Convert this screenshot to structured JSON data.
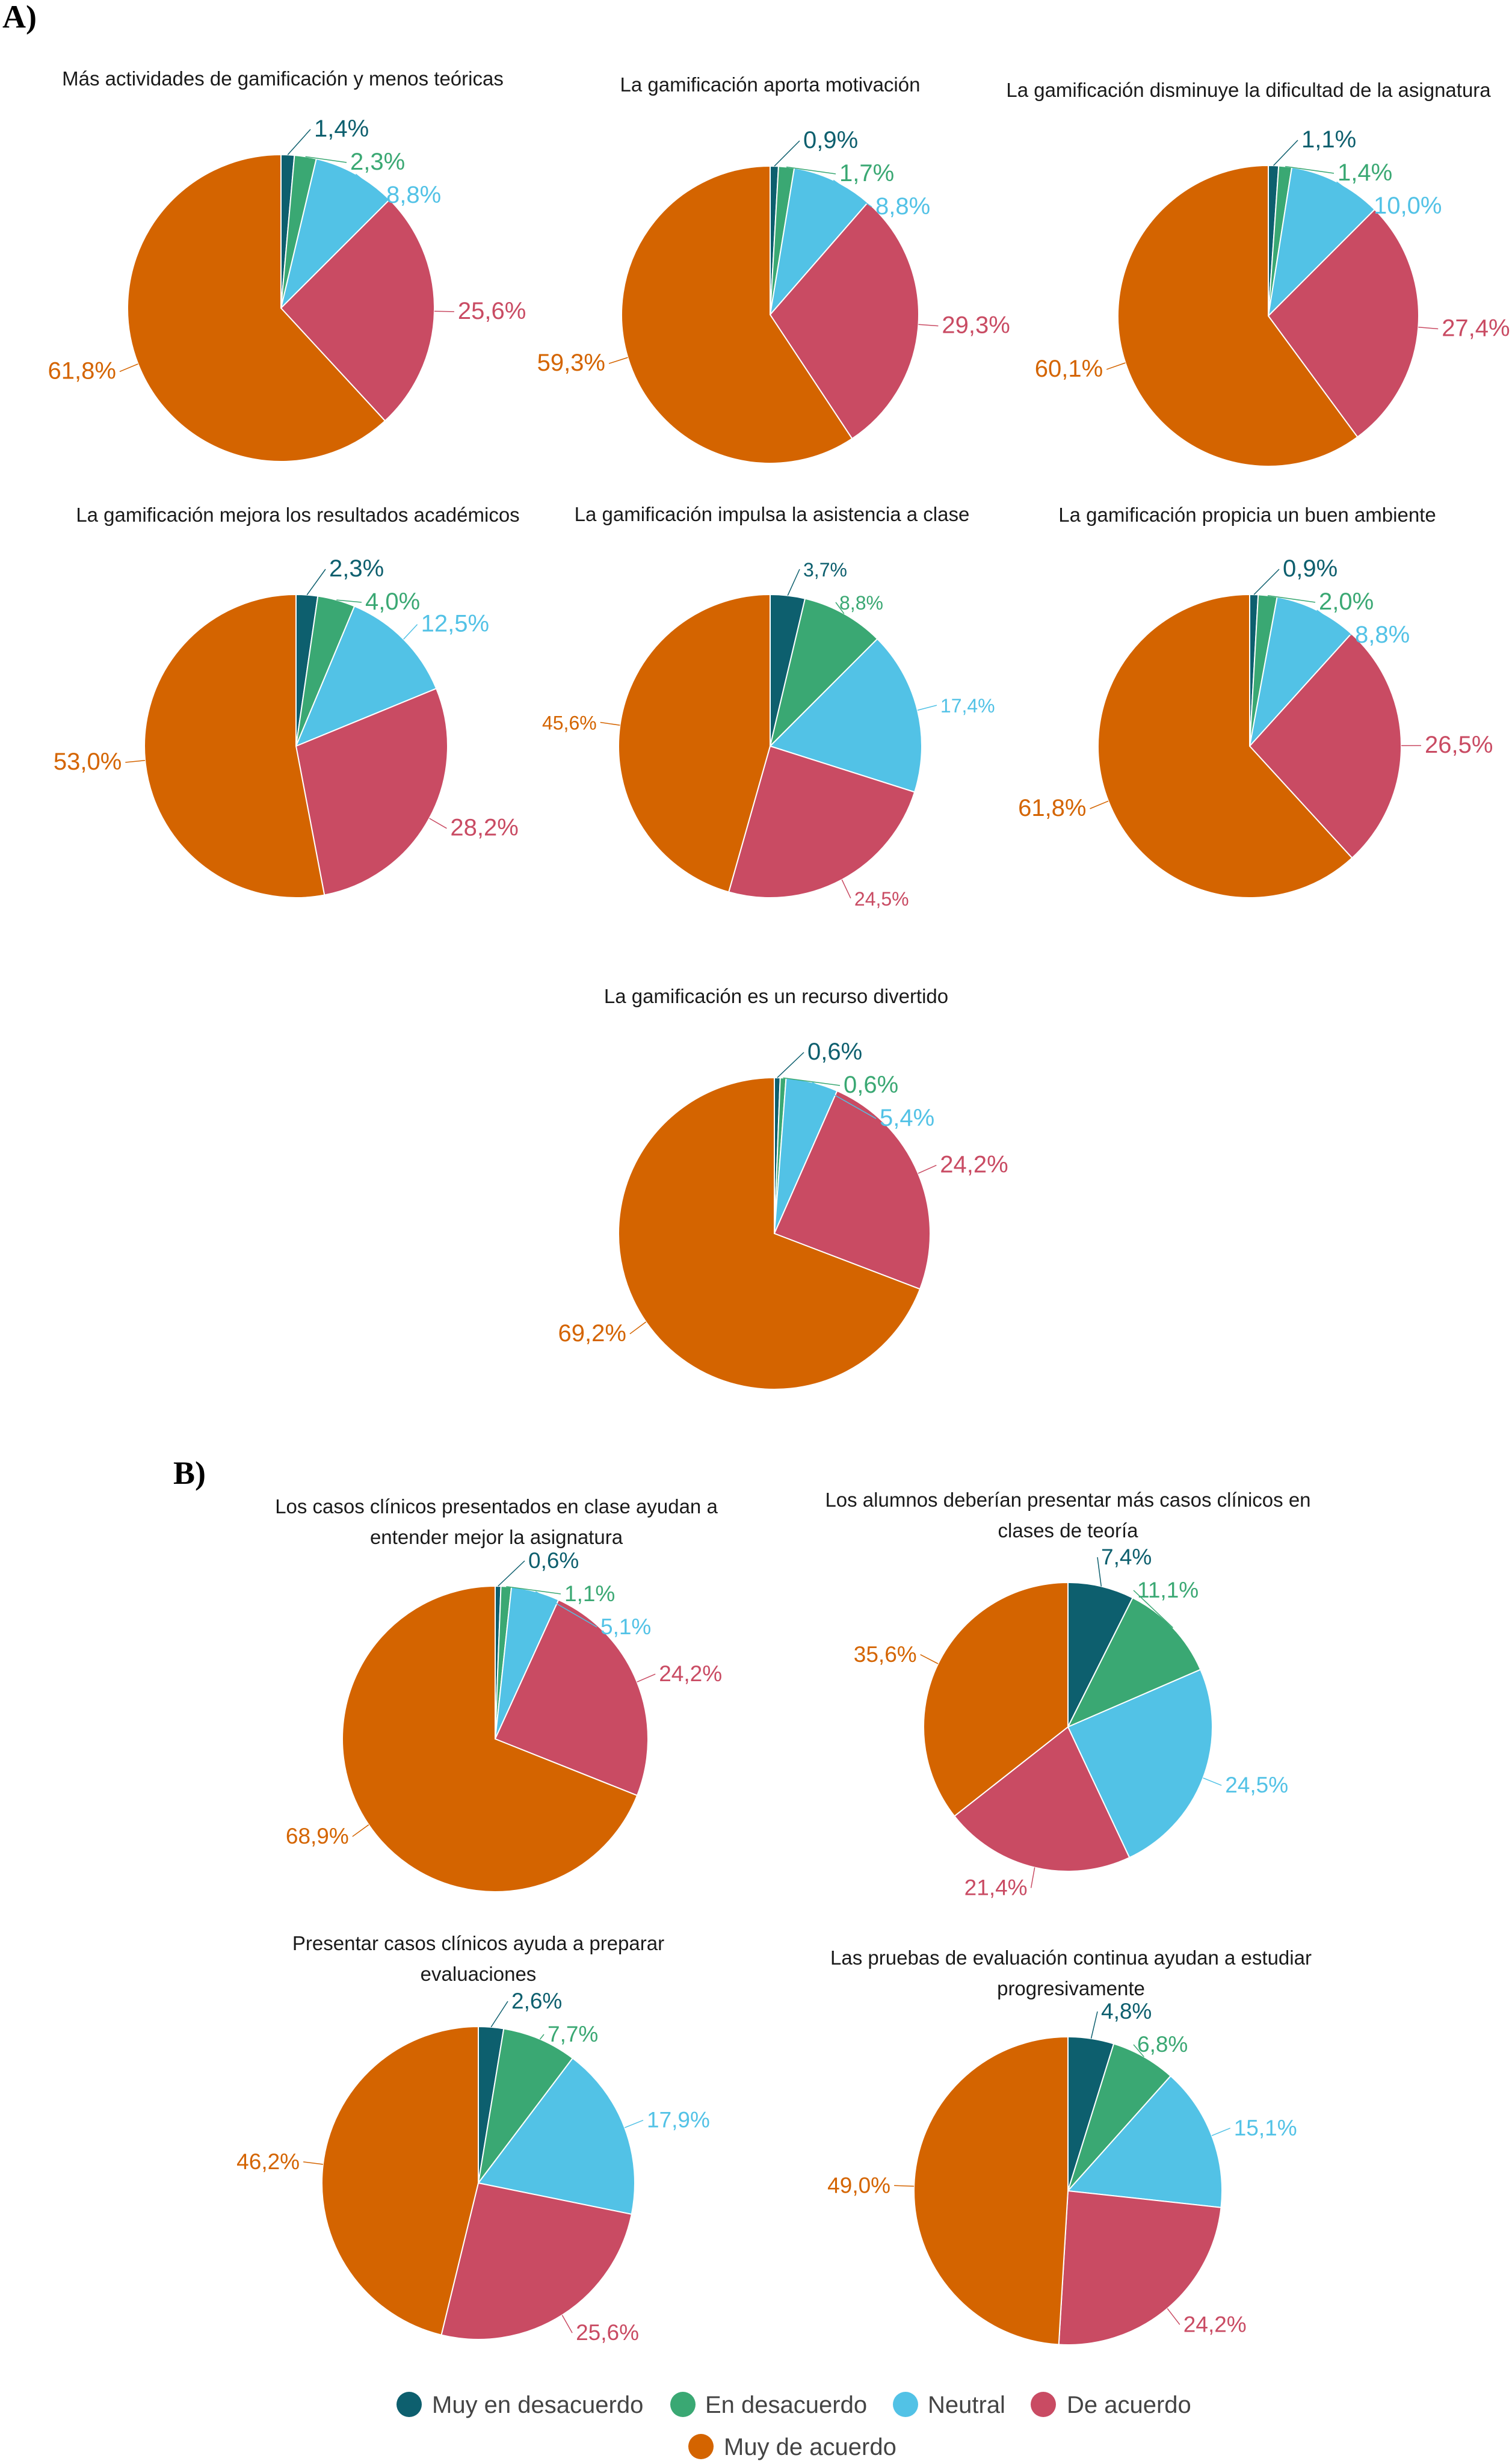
{
  "sections": {
    "a_label": "A)",
    "b_label": "B)"
  },
  "colors": {
    "Muy en desacuerdo": "#0d5f6e",
    "En desacuerdo": "#3aa873",
    "Neutral": "#52c2e6",
    "De acuerdo": "#c94b63",
    "Muy de acuerdo": "#d46400"
  },
  "legend": [
    "Muy en desacuerdo",
    "En desacuerdo",
    "Neutral",
    "De acuerdo",
    "Muy de acuerdo"
  ],
  "chart_data": [
    {
      "type": "pie",
      "section": "A",
      "title": [
        "Más actividades de gamificación y menos teóricas"
      ],
      "categories": [
        "Muy en desacuerdo",
        "En desacuerdo",
        "Neutral",
        "De acuerdo",
        "Muy de acuerdo"
      ],
      "values": [
        1.4,
        2.3,
        8.8,
        25.6,
        61.8
      ],
      "labels": [
        "1,4%",
        "2,3%",
        "8,8%",
        "25,6%",
        "61,8%"
      ]
    },
    {
      "type": "pie",
      "section": "A",
      "title": [
        "La gamificación aporta motivación"
      ],
      "categories": [
        "Muy en desacuerdo",
        "En desacuerdo",
        "Neutral",
        "De acuerdo",
        "Muy de acuerdo"
      ],
      "values": [
        0.9,
        1.7,
        8.8,
        29.3,
        59.3
      ],
      "labels": [
        "0,9%",
        "1,7%",
        "8,8%",
        "29,3%",
        "59,3%"
      ]
    },
    {
      "type": "pie",
      "section": "A",
      "title": [
        "La gamificación disminuye la dificultad de la asignatura"
      ],
      "categories": [
        "Muy en desacuerdo",
        "En desacuerdo",
        "Neutral",
        "De acuerdo",
        "Muy de acuerdo"
      ],
      "values": [
        1.1,
        1.4,
        10.0,
        27.4,
        60.1
      ],
      "labels": [
        "1,1%",
        "1,4%",
        "10,0%",
        "27,4%",
        "60,1%"
      ]
    },
    {
      "type": "pie",
      "section": "A",
      "title": [
        "La gamificación mejora los resultados académicos"
      ],
      "categories": [
        "Muy en desacuerdo",
        "En desacuerdo",
        "Neutral",
        "De acuerdo",
        "Muy de acuerdo"
      ],
      "values": [
        2.3,
        4.0,
        12.5,
        28.2,
        53.0
      ],
      "labels": [
        "2,3%",
        "4,0%",
        "12,5%",
        "28,2%",
        "53,0%"
      ]
    },
    {
      "type": "pie",
      "section": "A",
      "title": [
        "La gamificación impulsa la asistencia a clase"
      ],
      "categories": [
        "Muy en desacuerdo",
        "En desacuerdo",
        "Neutral",
        "De acuerdo",
        "Muy de acuerdo"
      ],
      "values": [
        3.7,
        8.8,
        17.4,
        24.5,
        45.6
      ],
      "labels": [
        "3,7%",
        "8,8%",
        "17,4%",
        "24,5%",
        "45,6%"
      ]
    },
    {
      "type": "pie",
      "section": "A",
      "title": [
        "La gamificación propicia un buen ambiente"
      ],
      "categories": [
        "Muy en desacuerdo",
        "En desacuerdo",
        "Neutral",
        "De acuerdo",
        "Muy de acuerdo"
      ],
      "values": [
        0.9,
        2.0,
        8.8,
        26.5,
        61.8
      ],
      "labels": [
        "0,9%",
        "2,0%",
        "8,8%",
        "26,5%",
        "61,8%"
      ]
    },
    {
      "type": "pie",
      "section": "A",
      "title": [
        "La gamificación es un recurso divertido"
      ],
      "categories": [
        "Muy en desacuerdo",
        "En desacuerdo",
        "Neutral",
        "De acuerdo",
        "Muy de acuerdo"
      ],
      "values": [
        0.6,
        0.6,
        5.4,
        24.2,
        69.2
      ],
      "labels": [
        "0,6%",
        "0,6%",
        "5,4%",
        "24,2%",
        "69,2%"
      ]
    },
    {
      "type": "pie",
      "section": "B",
      "title": [
        "Los casos clínicos presentados en clase ayudan a",
        "entender mejor la asignatura"
      ],
      "categories": [
        "Muy en desacuerdo",
        "En desacuerdo",
        "Neutral",
        "De acuerdo",
        "Muy de acuerdo"
      ],
      "values": [
        0.6,
        1.1,
        5.1,
        24.2,
        68.9
      ],
      "labels": [
        "0,6%",
        "1,1%",
        "5,1%",
        "24,2%",
        "68,9%"
      ]
    },
    {
      "type": "pie",
      "section": "B",
      "title": [
        "Los alumnos deberían presentar más casos clínicos en",
        "clases de teoría"
      ],
      "categories": [
        "Muy en desacuerdo",
        "En desacuerdo",
        "Neutral",
        "De acuerdo",
        "Muy de acuerdo"
      ],
      "values": [
        7.4,
        11.1,
        24.5,
        21.4,
        35.6
      ],
      "labels": [
        "7,4%",
        "11,1%",
        "24,5%",
        "21,4%",
        "35,6%"
      ]
    },
    {
      "type": "pie",
      "section": "B",
      "title": [
        "Presentar casos clínicos ayuda a preparar",
        "evaluaciones"
      ],
      "categories": [
        "Muy en desacuerdo",
        "En desacuerdo",
        "Neutral",
        "De acuerdo",
        "Muy de acuerdo"
      ],
      "values": [
        2.6,
        7.7,
        17.9,
        25.6,
        46.2
      ],
      "labels": [
        "2,6%",
        "7,7%",
        "17,9%",
        "25,6%",
        "46,2%"
      ]
    },
    {
      "type": "pie",
      "section": "B",
      "title": [
        "Las pruebas de evaluación continua ayudan a estudiar",
        "progresivamente"
      ],
      "categories": [
        "Muy en desacuerdo",
        "En desacuerdo",
        "Neutral",
        "De acuerdo",
        "Muy de acuerdo"
      ],
      "values": [
        4.8,
        6.8,
        15.1,
        24.2,
        49.0
      ],
      "labels": [
        "4,8%",
        "6,8%",
        "15,1%",
        "24,2%",
        "49,0%"
      ]
    }
  ]
}
